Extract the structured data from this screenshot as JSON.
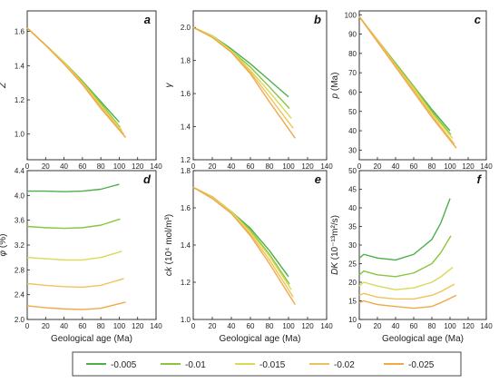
{
  "legend": {
    "entries": [
      {
        "label": "-0.005",
        "color": "#4daf4a"
      },
      {
        "label": "-0.01",
        "color": "#8cc43f"
      },
      {
        "label": "-0.015",
        "color": "#d9d95a"
      },
      {
        "label": "-0.02",
        "color": "#f0c35a"
      },
      {
        "label": "-0.025",
        "color": "#f0a848"
      }
    ]
  },
  "chart_data": [
    {
      "id": "a",
      "letter": "a",
      "type": "line",
      "xlabel": "",
      "ylabel": "Z",
      "ylabel_style": "italic",
      "xlim": [
        0,
        140
      ],
      "ylim": [
        0.85,
        1.72
      ],
      "xticks": [
        0,
        20,
        40,
        60,
        80,
        100,
        120,
        140
      ],
      "yticks": [
        1.0,
        1.2,
        1.4,
        1.6
      ],
      "ytick_labels": [
        "1.0",
        "1.2",
        "1.4",
        "1.6"
      ],
      "series": [
        {
          "color": "#4daf4a",
          "x": [
            0,
            20,
            40,
            60,
            80,
            100
          ],
          "y": [
            1.62,
            1.52,
            1.42,
            1.31,
            1.19,
            1.07
          ]
        },
        {
          "color": "#8cc43f",
          "x": [
            0,
            20,
            40,
            60,
            80,
            101
          ],
          "y": [
            1.62,
            1.52,
            1.42,
            1.31,
            1.18,
            1.04
          ]
        },
        {
          "color": "#d9d95a",
          "x": [
            0,
            20,
            40,
            60,
            80,
            103
          ],
          "y": [
            1.62,
            1.52,
            1.42,
            1.3,
            1.17,
            1.02
          ]
        },
        {
          "color": "#f0c35a",
          "x": [
            0,
            20,
            40,
            60,
            80,
            105
          ],
          "y": [
            1.62,
            1.52,
            1.41,
            1.3,
            1.16,
            1.0
          ]
        },
        {
          "color": "#f0a848",
          "x": [
            0,
            20,
            40,
            60,
            80,
            107
          ],
          "y": [
            1.62,
            1.52,
            1.41,
            1.29,
            1.15,
            0.98
          ]
        }
      ]
    },
    {
      "id": "b",
      "letter": "b",
      "type": "line",
      "xlabel": "",
      "ylabel": "γ",
      "ylabel_style": "italic",
      "xlim": [
        0,
        140
      ],
      "ylim": [
        1.2,
        2.1
      ],
      "xticks": [
        0,
        20,
        40,
        60,
        80,
        100,
        120,
        140
      ],
      "yticks": [
        1.2,
        1.4,
        1.6,
        1.8,
        2.0
      ],
      "ytick_labels": [
        "1.2",
        "1.4",
        "1.6",
        "1.8",
        "2.0"
      ],
      "series": [
        {
          "color": "#4daf4a",
          "x": [
            0,
            20,
            40,
            60,
            80,
            100
          ],
          "y": [
            2.0,
            1.95,
            1.87,
            1.78,
            1.68,
            1.58
          ]
        },
        {
          "color": "#8cc43f",
          "x": [
            0,
            20,
            40,
            60,
            80,
            101
          ],
          "y": [
            2.0,
            1.95,
            1.86,
            1.76,
            1.64,
            1.51
          ]
        },
        {
          "color": "#d9d95a",
          "x": [
            0,
            20,
            40,
            60,
            80,
            103
          ],
          "y": [
            2.0,
            1.95,
            1.86,
            1.74,
            1.61,
            1.45
          ]
        },
        {
          "color": "#f0c35a",
          "x": [
            0,
            20,
            40,
            60,
            80,
            105
          ],
          "y": [
            2.0,
            1.94,
            1.85,
            1.73,
            1.58,
            1.39
          ]
        },
        {
          "color": "#f0a848",
          "x": [
            0,
            20,
            40,
            60,
            80,
            107
          ],
          "y": [
            2.0,
            1.94,
            1.85,
            1.72,
            1.55,
            1.33
          ]
        }
      ]
    },
    {
      "id": "c",
      "letter": "c",
      "type": "line",
      "xlabel": "",
      "ylabel": "p (Ma)",
      "ylabel_style": "mixed",
      "xlim": [
        0,
        140
      ],
      "ylim": [
        25,
        102
      ],
      "xticks": [
        0,
        20,
        40,
        60,
        80,
        100,
        120,
        140
      ],
      "yticks": [
        30,
        40,
        50,
        60,
        70,
        80,
        90,
        100
      ],
      "ytick_labels": [
        "30",
        "40",
        "50",
        "60",
        "70",
        "80",
        "90",
        "100"
      ],
      "series": [
        {
          "color": "#4daf4a",
          "x": [
            0,
            20,
            40,
            60,
            80,
            100
          ],
          "y": [
            99,
            87,
            75,
            63,
            51,
            40
          ]
        },
        {
          "color": "#8cc43f",
          "x": [
            0,
            20,
            40,
            60,
            80,
            101
          ],
          "y": [
            99,
            87,
            75,
            63,
            50,
            38
          ]
        },
        {
          "color": "#d9d95a",
          "x": [
            0,
            20,
            40,
            60,
            80,
            103
          ],
          "y": [
            99,
            87,
            74,
            62,
            49,
            36
          ]
        },
        {
          "color": "#f0c35a",
          "x": [
            0,
            20,
            40,
            60,
            80,
            105
          ],
          "y": [
            99,
            87,
            74,
            61,
            48,
            33
          ]
        },
        {
          "color": "#f0a848",
          "x": [
            0,
            20,
            40,
            60,
            80,
            107
          ],
          "y": [
            99,
            86,
            73,
            60,
            47,
            31
          ]
        }
      ]
    },
    {
      "id": "d",
      "letter": "d",
      "type": "line",
      "xlabel": "Geological age (Ma)",
      "ylabel": "φ (%)",
      "ylabel_style": "mixed",
      "xlim": [
        0,
        140
      ],
      "ylim": [
        2.0,
        4.4
      ],
      "xticks": [
        0,
        20,
        40,
        60,
        80,
        100,
        120,
        140
      ],
      "yticks": [
        2.0,
        2.4,
        2.8,
        3.2,
        3.6,
        4.0,
        4.4
      ],
      "ytick_labels": [
        "2.0",
        "2.4",
        "2.8",
        "3.2",
        "3.6",
        "4.0",
        "4.4"
      ],
      "series": [
        {
          "color": "#4daf4a",
          "x": [
            0,
            20,
            40,
            60,
            80,
            100
          ],
          "y": [
            4.07,
            4.07,
            4.06,
            4.07,
            4.1,
            4.18
          ]
        },
        {
          "color": "#8cc43f",
          "x": [
            0,
            20,
            40,
            60,
            80,
            101
          ],
          "y": [
            3.5,
            3.48,
            3.47,
            3.48,
            3.52,
            3.62
          ]
        },
        {
          "color": "#d9d95a",
          "x": [
            0,
            20,
            40,
            60,
            80,
            103
          ],
          "y": [
            3.0,
            2.98,
            2.96,
            2.96,
            3.0,
            3.1
          ]
        },
        {
          "color": "#f0c35a",
          "x": [
            0,
            20,
            40,
            60,
            80,
            105
          ],
          "y": [
            2.58,
            2.55,
            2.53,
            2.52,
            2.55,
            2.66
          ]
        },
        {
          "color": "#f0a848",
          "x": [
            0,
            20,
            40,
            60,
            80,
            107
          ],
          "y": [
            2.22,
            2.19,
            2.17,
            2.16,
            2.18,
            2.28
          ]
        }
      ]
    },
    {
      "id": "e",
      "letter": "e",
      "type": "line",
      "xlabel": "Geological age (Ma)",
      "ylabel": "ck (10⁴ mol/m³)",
      "ylabel_style": "mixed",
      "xlim": [
        0,
        140
      ],
      "ylim": [
        1.0,
        1.8
      ],
      "xticks": [
        0,
        20,
        40,
        60,
        80,
        100,
        120,
        140
      ],
      "yticks": [
        1.0,
        1.2,
        1.4,
        1.6,
        1.8
      ],
      "ytick_labels": [
        "1.0",
        "1.2",
        "1.4",
        "1.6",
        "1.8"
      ],
      "series": [
        {
          "color": "#4daf4a",
          "x": [
            0,
            20,
            40,
            60,
            80,
            100
          ],
          "y": [
            1.71,
            1.66,
            1.58,
            1.49,
            1.37,
            1.23
          ]
        },
        {
          "color": "#8cc43f",
          "x": [
            0,
            20,
            40,
            60,
            80,
            101
          ],
          "y": [
            1.71,
            1.66,
            1.58,
            1.48,
            1.35,
            1.19
          ]
        },
        {
          "color": "#d9d95a",
          "x": [
            0,
            20,
            40,
            60,
            80,
            103
          ],
          "y": [
            1.71,
            1.66,
            1.58,
            1.47,
            1.34,
            1.16
          ]
        },
        {
          "color": "#f0c35a",
          "x": [
            0,
            20,
            40,
            60,
            80,
            105
          ],
          "y": [
            1.71,
            1.66,
            1.57,
            1.46,
            1.32,
            1.12
          ]
        },
        {
          "color": "#f0a848",
          "x": [
            0,
            20,
            40,
            60,
            80,
            107
          ],
          "y": [
            1.71,
            1.65,
            1.57,
            1.45,
            1.3,
            1.08
          ]
        }
      ]
    },
    {
      "id": "f",
      "letter": "f",
      "type": "line",
      "xlabel": "Geological age (Ma)",
      "ylabel": "DK (10⁻¹³m²/s)",
      "ylabel_style": "mixed",
      "xlim": [
        0,
        140
      ],
      "ylim": [
        10,
        50
      ],
      "xticks": [
        0,
        20,
        40,
        60,
        80,
        100,
        120,
        140
      ],
      "yticks": [
        10,
        15,
        20,
        25,
        30,
        35,
        40,
        45,
        50
      ],
      "ytick_labels": [
        "10",
        "15",
        "20",
        "25",
        "30",
        "35",
        "40",
        "45",
        "50"
      ],
      "series": [
        {
          "color": "#4daf4a",
          "x": [
            0,
            5,
            20,
            40,
            60,
            80,
            90,
            100
          ],
          "y": [
            26.5,
            27.5,
            26.5,
            26.0,
            27.5,
            31.5,
            36.0,
            42.5
          ]
        },
        {
          "color": "#8cc43f",
          "x": [
            0,
            5,
            20,
            40,
            60,
            80,
            90,
            101
          ],
          "y": [
            22.0,
            23.0,
            22.0,
            21.5,
            22.5,
            25.0,
            28.0,
            32.5
          ]
        },
        {
          "color": "#d9d95a",
          "x": [
            0,
            5,
            20,
            40,
            60,
            80,
            90,
            103
          ],
          "y": [
            19.0,
            20.0,
            19.0,
            18.0,
            18.5,
            20.0,
            21.5,
            24.0
          ]
        },
        {
          "color": "#f0c35a",
          "x": [
            0,
            5,
            20,
            40,
            60,
            80,
            90,
            105
          ],
          "y": [
            16.5,
            17.0,
            16.0,
            15.5,
            15.5,
            16.5,
            17.5,
            19.5
          ]
        },
        {
          "color": "#f0a848",
          "x": [
            0,
            5,
            20,
            40,
            60,
            80,
            90,
            107
          ],
          "y": [
            14.5,
            15.0,
            14.0,
            13.5,
            13.0,
            13.5,
            14.5,
            16.5
          ]
        }
      ]
    }
  ]
}
